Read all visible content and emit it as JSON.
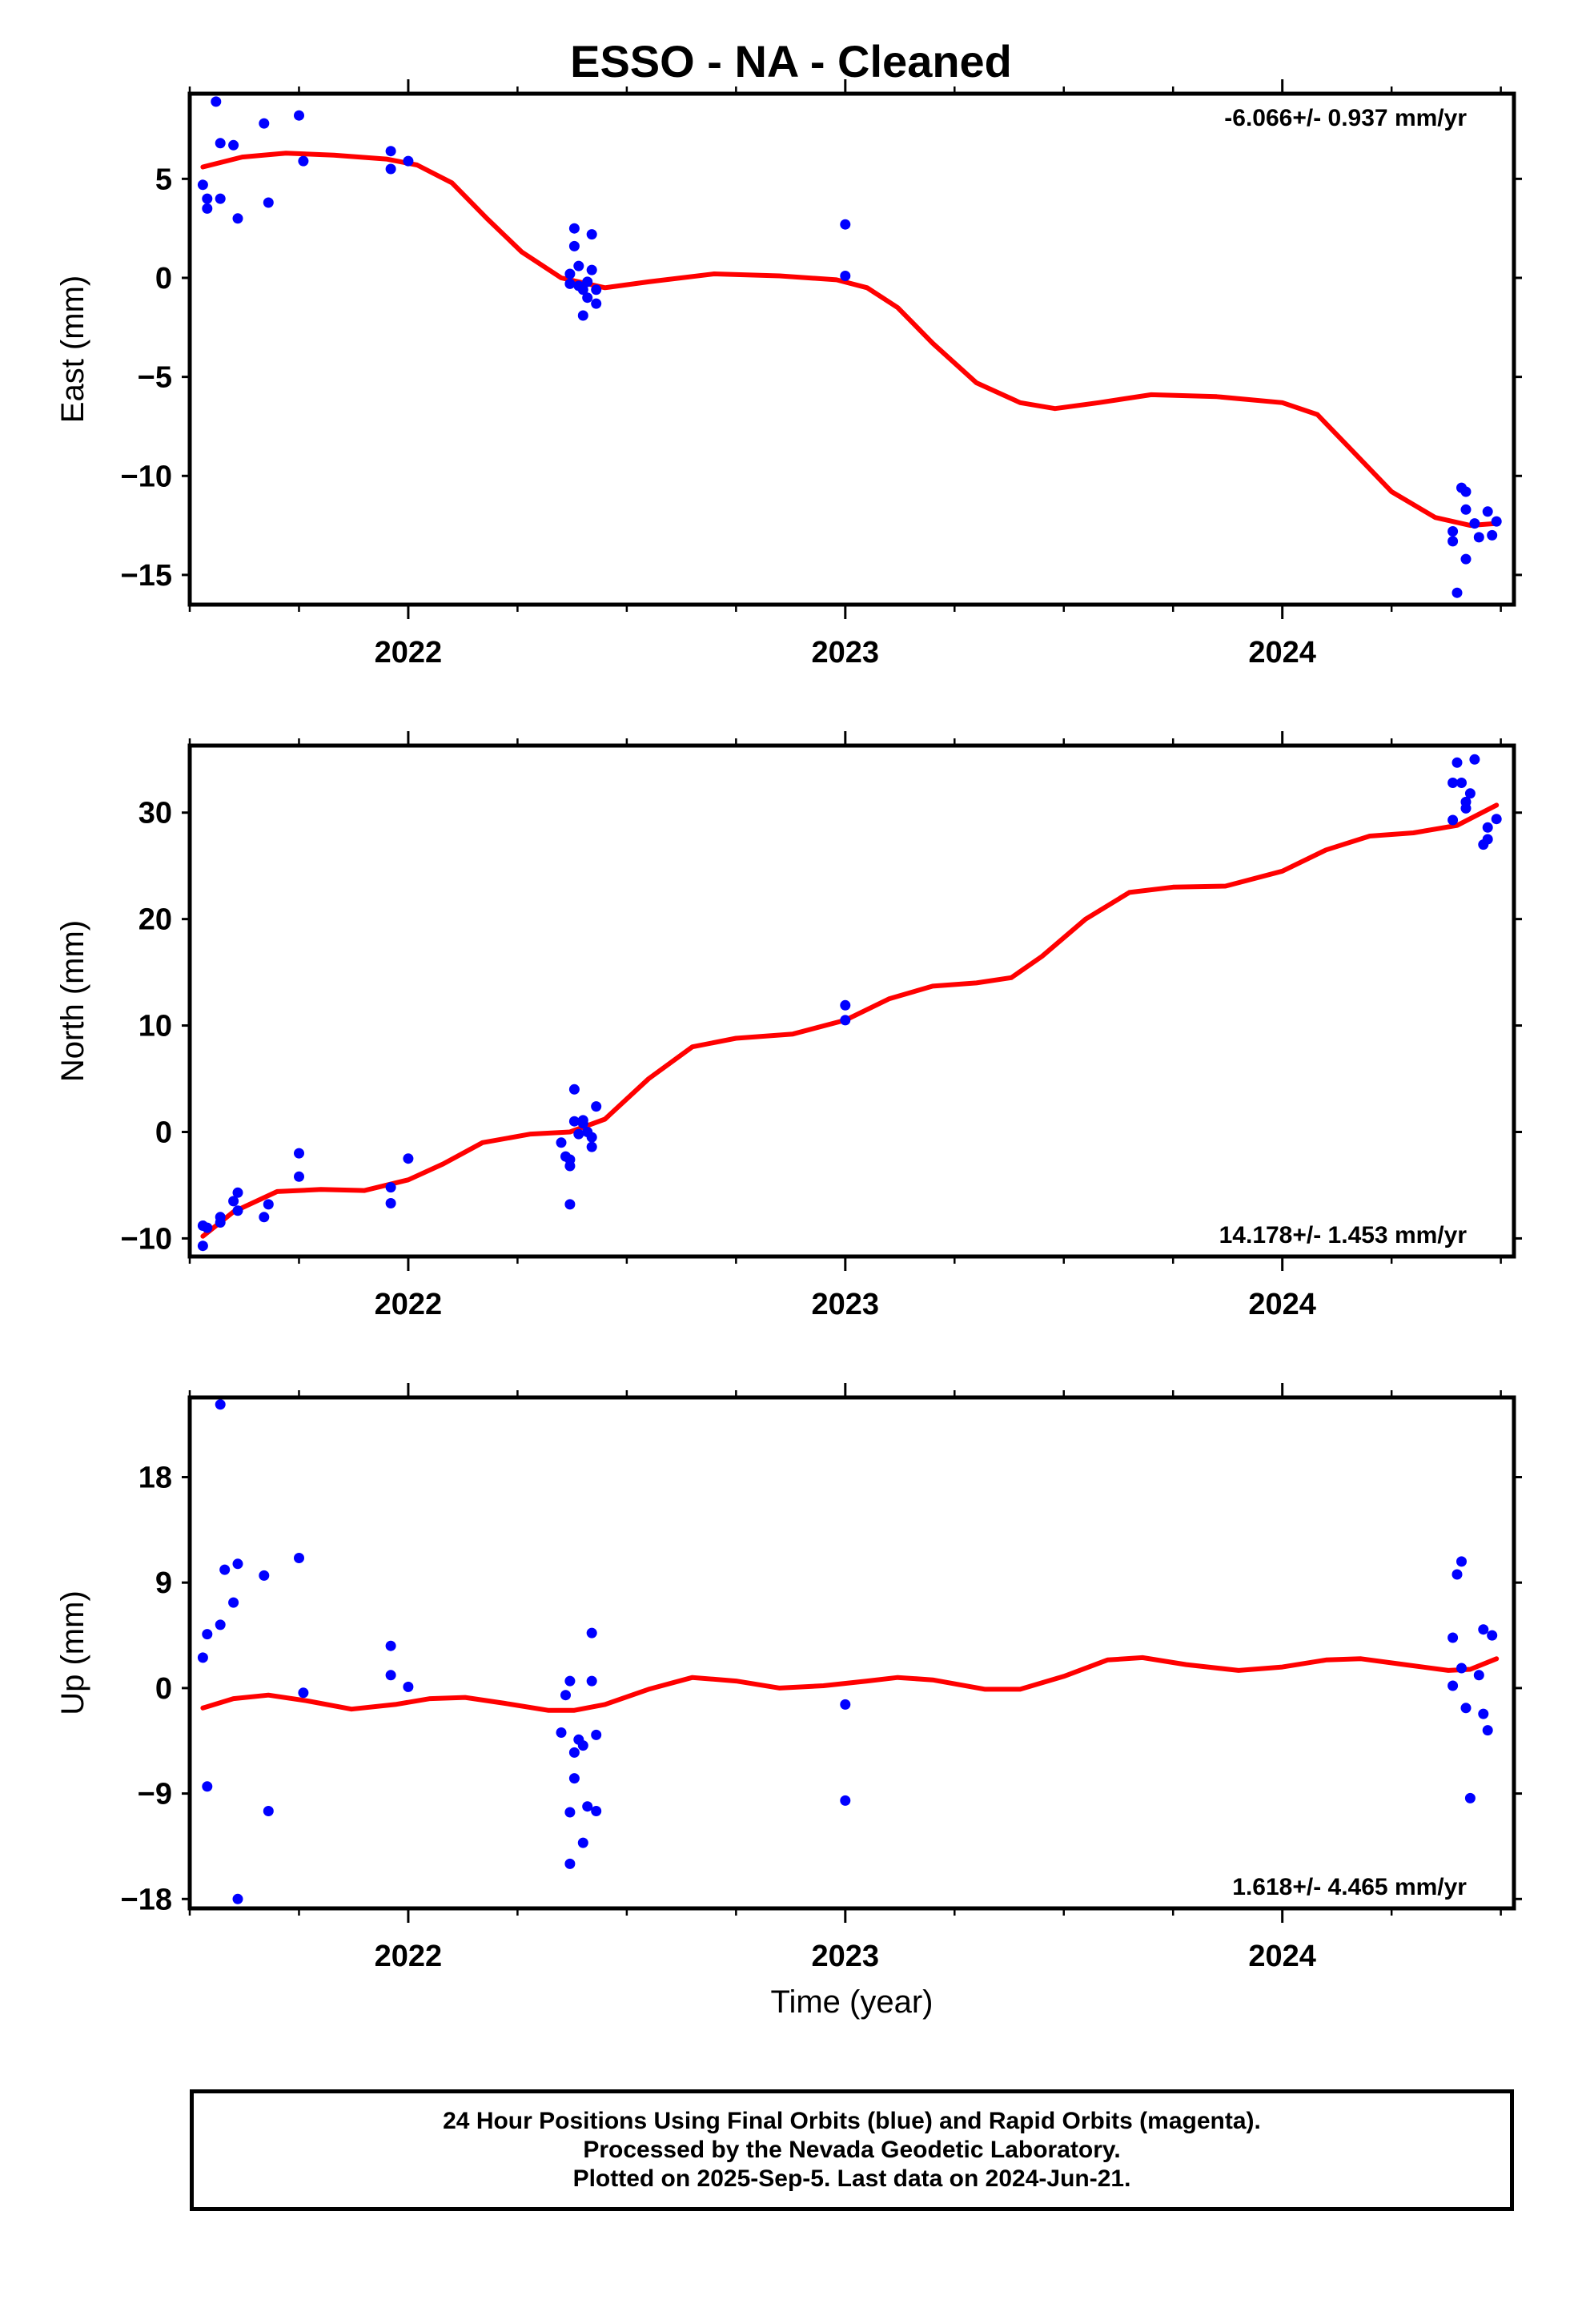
{
  "title": "ESSO  - NA - Cleaned",
  "colors": {
    "points": "#0000ff",
    "fit": "#ff0000",
    "frame": "#000000"
  },
  "footer": {
    "line1": "24 Hour Positions Using Final Orbits (blue) and Rapid Orbits (magenta).",
    "line2": "Processed by the Nevada Geodetic Laboratory.",
    "line3": "Plotted on 2025-Sep-5. Last data on 2024-Jun-21."
  },
  "chart_data": [
    {
      "type": "scatter",
      "ylabel": "East (mm)",
      "xlabel": "",
      "xlim": [
        2021.5,
        2024.53
      ],
      "ylim": [
        -16.5,
        9.3
      ],
      "xticks": [
        2022,
        2023,
        2024
      ],
      "yticks": [
        5,
        0,
        -5,
        -10,
        -15
      ],
      "rate_label": "-6.066+/- 0.937 mm/yr",
      "points": [
        [
          2021.53,
          4.7
        ],
        [
          2021.54,
          4.0
        ],
        [
          2021.54,
          3.5
        ],
        [
          2021.56,
          8.9
        ],
        [
          2021.57,
          6.8
        ],
        [
          2021.57,
          4.0
        ],
        [
          2021.6,
          6.7
        ],
        [
          2021.61,
          3.0
        ],
        [
          2021.67,
          7.8
        ],
        [
          2021.68,
          3.8
        ],
        [
          2021.75,
          8.2
        ],
        [
          2021.76,
          5.9
        ],
        [
          2021.96,
          6.4
        ],
        [
          2021.96,
          5.5
        ],
        [
          2022.0,
          5.9
        ],
        [
          2022.37,
          0.2
        ],
        [
          2022.37,
          -0.3
        ],
        [
          2022.38,
          2.5
        ],
        [
          2022.38,
          1.6
        ],
        [
          2022.39,
          0.6
        ],
        [
          2022.39,
          -0.4
        ],
        [
          2022.4,
          -0.6
        ],
        [
          2022.4,
          -1.9
        ],
        [
          2022.41,
          -1.0
        ],
        [
          2022.41,
          -0.2
        ],
        [
          2022.42,
          0.4
        ],
        [
          2022.42,
          2.2
        ],
        [
          2022.43,
          -0.6
        ],
        [
          2022.43,
          -1.3
        ],
        [
          2023.0,
          2.7
        ],
        [
          2023.0,
          0.1
        ],
        [
          2024.39,
          -13.3
        ],
        [
          2024.39,
          -12.8
        ],
        [
          2024.4,
          -15.9
        ],
        [
          2024.41,
          -10.6
        ],
        [
          2024.42,
          -10.8
        ],
        [
          2024.42,
          -11.7
        ],
        [
          2024.42,
          -14.2
        ],
        [
          2024.44,
          -12.4
        ],
        [
          2024.45,
          -13.1
        ],
        [
          2024.47,
          -11.8
        ],
        [
          2024.48,
          -13.0
        ],
        [
          2024.49,
          -12.3
        ]
      ],
      "fit": [
        [
          2021.53,
          5.6
        ],
        [
          2021.62,
          6.1
        ],
        [
          2021.72,
          6.3
        ],
        [
          2021.83,
          6.2
        ],
        [
          2021.95,
          6.0
        ],
        [
          2022.02,
          5.7
        ],
        [
          2022.1,
          4.8
        ],
        [
          2022.18,
          3.0
        ],
        [
          2022.26,
          1.3
        ],
        [
          2022.35,
          0.0
        ],
        [
          2022.45,
          -0.5
        ],
        [
          2022.55,
          -0.2
        ],
        [
          2022.7,
          0.2
        ],
        [
          2022.85,
          0.1
        ],
        [
          2022.98,
          -0.1
        ],
        [
          2023.05,
          -0.5
        ],
        [
          2023.12,
          -1.5
        ],
        [
          2023.2,
          -3.3
        ],
        [
          2023.3,
          -5.3
        ],
        [
          2023.4,
          -6.3
        ],
        [
          2023.48,
          -6.6
        ],
        [
          2023.58,
          -6.3
        ],
        [
          2023.7,
          -5.9
        ],
        [
          2023.85,
          -6.0
        ],
        [
          2024.0,
          -6.3
        ],
        [
          2024.08,
          -6.9
        ],
        [
          2024.15,
          -8.5
        ],
        [
          2024.25,
          -10.8
        ],
        [
          2024.35,
          -12.1
        ],
        [
          2024.43,
          -12.5
        ],
        [
          2024.49,
          -12.4
        ]
      ]
    },
    {
      "type": "scatter",
      "ylabel": "North (mm)",
      "xlabel": "",
      "xlim": [
        2021.5,
        2024.53
      ],
      "ylim": [
        -11.7,
        36.3
      ],
      "xticks": [
        2022,
        2023,
        2024
      ],
      "yticks": [
        30,
        20,
        10,
        0,
        -10
      ],
      "rate_label": "14.178+/- 1.453 mm/yr",
      "points": [
        [
          2021.53,
          -10.7
        ],
        [
          2021.53,
          -8.8
        ],
        [
          2021.54,
          -9.0
        ],
        [
          2021.57,
          -8.5
        ],
        [
          2021.57,
          -8.0
        ],
        [
          2021.6,
          -6.5
        ],
        [
          2021.61,
          -5.7
        ],
        [
          2021.61,
          -7.4
        ],
        [
          2021.67,
          -8.0
        ],
        [
          2021.68,
          -6.8
        ],
        [
          2021.75,
          -2.0
        ],
        [
          2021.75,
          -4.2
        ],
        [
          2021.96,
          -5.2
        ],
        [
          2021.96,
          -6.7
        ],
        [
          2022.0,
          -2.5
        ],
        [
          2022.35,
          -1.0
        ],
        [
          2022.36,
          -2.3
        ],
        [
          2022.37,
          -3.2
        ],
        [
          2022.37,
          -2.6
        ],
        [
          2022.37,
          -6.8
        ],
        [
          2022.38,
          4.0
        ],
        [
          2022.38,
          1.0
        ],
        [
          2022.39,
          -0.2
        ],
        [
          2022.4,
          1.1
        ],
        [
          2022.4,
          0.8
        ],
        [
          2022.41,
          0.0
        ],
        [
          2022.42,
          -0.5
        ],
        [
          2022.42,
          -1.4
        ],
        [
          2022.43,
          2.4
        ],
        [
          2023.0,
          11.9
        ],
        [
          2023.0,
          10.5
        ],
        [
          2024.39,
          32.8
        ],
        [
          2024.39,
          29.3
        ],
        [
          2024.4,
          34.7
        ],
        [
          2024.41,
          32.8
        ],
        [
          2024.42,
          31.0
        ],
        [
          2024.42,
          30.4
        ],
        [
          2024.43,
          31.8
        ],
        [
          2024.44,
          35.0
        ],
        [
          2024.46,
          27.0
        ],
        [
          2024.47,
          27.5
        ],
        [
          2024.47,
          28.6
        ],
        [
          2024.49,
          29.4
        ]
      ],
      "fit": [
        [
          2021.53,
          -9.8
        ],
        [
          2021.6,
          -7.5
        ],
        [
          2021.7,
          -5.6
        ],
        [
          2021.8,
          -5.4
        ],
        [
          2021.9,
          -5.5
        ],
        [
          2022.0,
          -4.5
        ],
        [
          2022.08,
          -3.0
        ],
        [
          2022.17,
          -1.0
        ],
        [
          2022.28,
          -0.2
        ],
        [
          2022.37,
          0.0
        ],
        [
          2022.45,
          1.2
        ],
        [
          2022.55,
          5.0
        ],
        [
          2022.65,
          8.0
        ],
        [
          2022.75,
          8.8
        ],
        [
          2022.88,
          9.2
        ],
        [
          2023.0,
          10.5
        ],
        [
          2023.1,
          12.5
        ],
        [
          2023.2,
          13.7
        ],
        [
          2023.3,
          14.0
        ],
        [
          2023.38,
          14.5
        ],
        [
          2023.45,
          16.5
        ],
        [
          2023.55,
          20.0
        ],
        [
          2023.65,
          22.5
        ],
        [
          2023.75,
          23.0
        ],
        [
          2023.87,
          23.1
        ],
        [
          2024.0,
          24.5
        ],
        [
          2024.1,
          26.5
        ],
        [
          2024.2,
          27.8
        ],
        [
          2024.3,
          28.1
        ],
        [
          2024.4,
          28.8
        ],
        [
          2024.49,
          30.7
        ]
      ]
    },
    {
      "type": "scatter",
      "ylabel": "Up (mm)",
      "xlabel": "Time (year)",
      "xlim": [
        2021.5,
        2024.53
      ],
      "ylim": [
        -18.8,
        24.8
      ],
      "xticks": [
        2022,
        2023,
        2024
      ],
      "yticks": [
        18,
        9,
        0,
        -9,
        -18
      ],
      "rate_label": "1.618+/- 4.465 mm/yr",
      "points": [
        [
          2021.53,
          2.6
        ],
        [
          2021.54,
          4.6
        ],
        [
          2021.54,
          -8.4
        ],
        [
          2021.57,
          24.2
        ],
        [
          2021.57,
          5.4
        ],
        [
          2021.58,
          10.1
        ],
        [
          2021.6,
          7.3
        ],
        [
          2021.61,
          10.6
        ],
        [
          2021.61,
          -18.0
        ],
        [
          2021.67,
          9.6
        ],
        [
          2021.68,
          -10.5
        ],
        [
          2021.75,
          11.1
        ],
        [
          2021.76,
          -0.4
        ],
        [
          2021.96,
          3.6
        ],
        [
          2021.96,
          1.1
        ],
        [
          2022.0,
          0.1
        ],
        [
          2022.35,
          -3.8
        ],
        [
          2022.36,
          -0.6
        ],
        [
          2022.37,
          0.6
        ],
        [
          2022.37,
          -10.6
        ],
        [
          2022.37,
          -15.0
        ],
        [
          2022.38,
          -5.5
        ],
        [
          2022.38,
          -7.7
        ],
        [
          2022.39,
          -4.4
        ],
        [
          2022.4,
          -4.9
        ],
        [
          2022.4,
          -13.2
        ],
        [
          2022.41,
          -10.1
        ],
        [
          2022.42,
          4.7
        ],
        [
          2022.42,
          0.6
        ],
        [
          2022.43,
          -4.0
        ],
        [
          2022.43,
          -10.5
        ],
        [
          2023.0,
          -1.4
        ],
        [
          2023.0,
          -9.6
        ],
        [
          2024.39,
          0.2
        ],
        [
          2024.39,
          4.3
        ],
        [
          2024.4,
          9.7
        ],
        [
          2024.41,
          1.7
        ],
        [
          2024.41,
          10.8
        ],
        [
          2024.42,
          -1.7
        ],
        [
          2024.43,
          -9.4
        ],
        [
          2024.45,
          1.1
        ],
        [
          2024.46,
          5.0
        ],
        [
          2024.46,
          -2.2
        ],
        [
          2024.47,
          -3.6
        ],
        [
          2024.48,
          4.5
        ]
      ],
      "fit": [
        [
          2021.53,
          -1.7
        ],
        [
          2021.6,
          -0.9
        ],
        [
          2021.68,
          -0.6
        ],
        [
          2021.77,
          -1.1
        ],
        [
          2021.87,
          -1.8
        ],
        [
          2021.97,
          -1.4
        ],
        [
          2022.05,
          -0.9
        ],
        [
          2022.13,
          -0.8
        ],
        [
          2022.22,
          -1.3
        ],
        [
          2022.32,
          -1.9
        ],
        [
          2022.38,
          -1.9
        ],
        [
          2022.45,
          -1.4
        ],
        [
          2022.55,
          -0.1
        ],
        [
          2022.65,
          0.9
        ],
        [
          2022.75,
          0.6
        ],
        [
          2022.85,
          0.0
        ],
        [
          2022.95,
          0.2
        ],
        [
          2023.05,
          0.6
        ],
        [
          2023.12,
          0.9
        ],
        [
          2023.2,
          0.7
        ],
        [
          2023.32,
          -0.1
        ],
        [
          2023.4,
          -0.1
        ],
        [
          2023.5,
          1.0
        ],
        [
          2023.6,
          2.4
        ],
        [
          2023.68,
          2.6
        ],
        [
          2023.78,
          2.0
        ],
        [
          2023.9,
          1.5
        ],
        [
          2024.0,
          1.8
        ],
        [
          2024.1,
          2.4
        ],
        [
          2024.18,
          2.5
        ],
        [
          2024.28,
          2.0
        ],
        [
          2024.38,
          1.5
        ],
        [
          2024.43,
          1.6
        ],
        [
          2024.49,
          2.5
        ]
      ]
    }
  ]
}
